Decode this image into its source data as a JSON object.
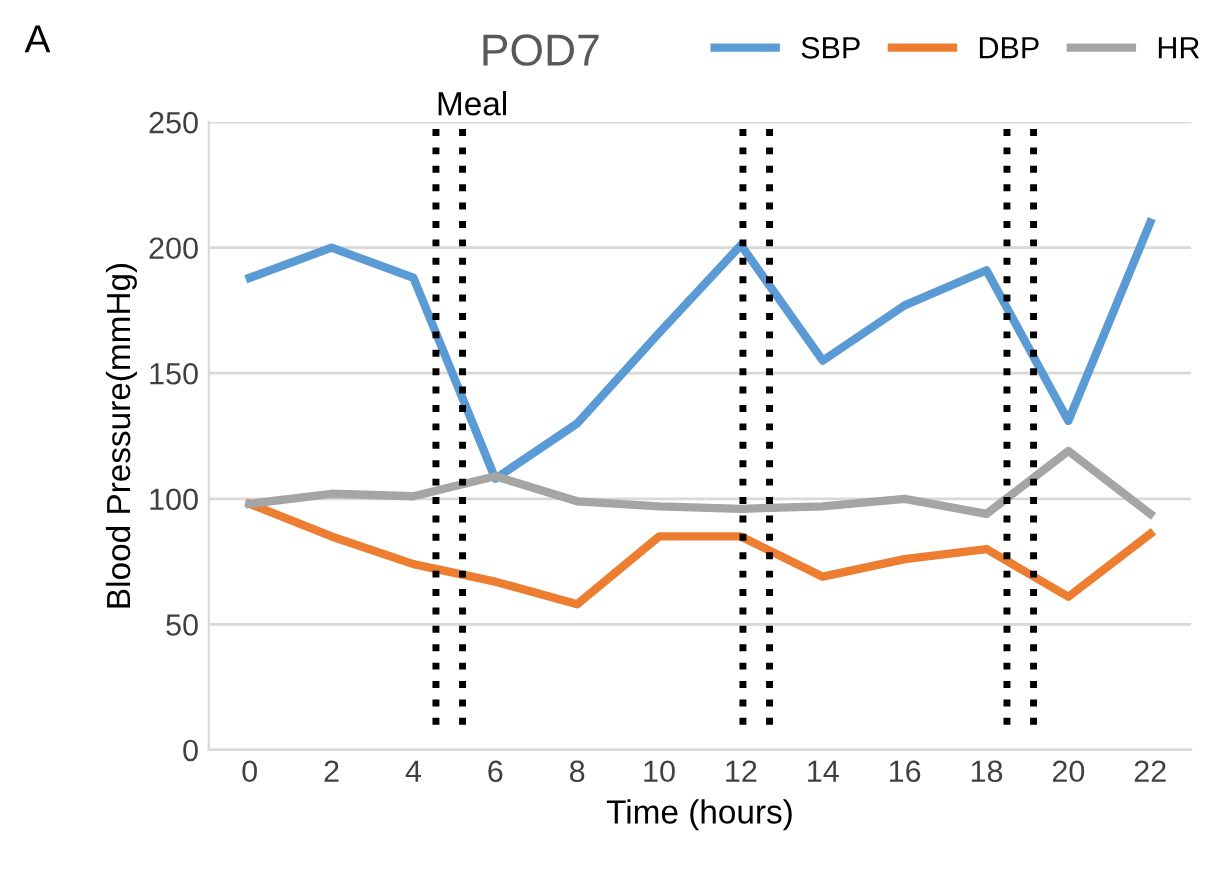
{
  "chart_data": {
    "type": "line",
    "title": "POD7",
    "xlabel": "Time (hours)",
    "ylabel": "Blood Pressure(mmHg)",
    "annotations": [
      "A"
    ],
    "x": [
      0,
      2,
      4,
      6,
      8,
      10,
      12,
      14,
      16,
      18,
      20,
      22
    ],
    "series": [
      {
        "name": "SBP",
        "color": "#5b9bd5",
        "values": [
          188,
          200,
          188,
          108,
          130,
          166,
          201,
          155,
          177,
          191,
          131,
          210
        ]
      },
      {
        "name": "DBP",
        "color": "#ed7d31",
        "values": [
          98,
          85,
          74,
          67,
          58,
          85,
          85,
          69,
          76,
          80,
          61,
          86
        ]
      },
      {
        "name": "HR",
        "color": "#a5a5a5",
        "values": [
          98,
          102,
          101,
          109,
          99,
          97,
          96,
          97,
          100,
          94,
          119,
          94
        ]
      }
    ],
    "ref_lines": [
      {
        "axis": "x",
        "value": 4.55,
        "label": "Meal",
        "color": "#000000",
        "line_style": "dotted"
      },
      {
        "axis": "x",
        "value": 5.2,
        "color": "#000000",
        "line_style": "dotted"
      },
      {
        "axis": "x",
        "value": 12.05,
        "color": "#000000",
        "line_style": "dotted"
      },
      {
        "axis": "x",
        "value": 12.7,
        "color": "#000000",
        "line_style": "dotted"
      },
      {
        "axis": "x",
        "value": 18.5,
        "color": "#000000",
        "line_style": "dotted"
      },
      {
        "axis": "x",
        "value": 19.15,
        "color": "#000000",
        "line_style": "dotted"
      }
    ],
    "xlim": [
      -1,
      23
    ],
    "xticks": [
      0,
      2,
      4,
      6,
      8,
      10,
      12,
      14,
      16,
      18,
      20,
      22
    ],
    "ylim": [
      0,
      250
    ],
    "yticks": [
      0,
      50,
      100,
      150,
      200,
      250
    ],
    "grid": "y",
    "legend": "top right",
    "marker": "none",
    "line_style": "solid"
  }
}
